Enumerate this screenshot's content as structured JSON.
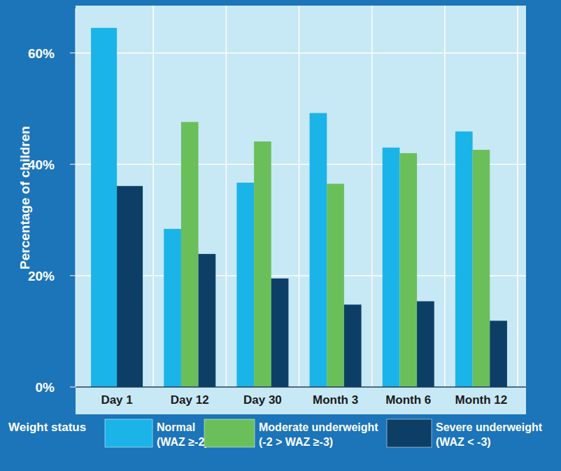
{
  "chart_data": {
    "type": "bar",
    "y_label": "Percentage of children",
    "categories": [
      "Day 1",
      "Day 12",
      "Day 30",
      "Month 3",
      "Month 6",
      "Month 12"
    ],
    "series": [
      {
        "name": "Normal (WAZ ≥-2)",
        "color": "#1ab4e8",
        "values": [
          64.5,
          28.4,
          36.7,
          49.2,
          43.0,
          45.9
        ]
      },
      {
        "name": "Moderate underweight (-2 > WAZ ≥-3)",
        "color": "#6abf5a",
        "values": [
          null,
          47.6,
          44.1,
          36.5,
          42.0,
          42.6
        ]
      },
      {
        "name": "Severe underweight (WAZ < -3)",
        "color": "#0d3f66",
        "values": [
          36.1,
          23.9,
          19.5,
          14.8,
          15.4,
          11.9
        ]
      }
    ],
    "legend_title": "Weight status",
    "legend": "bottom",
    "ylim": [
      0,
      68
    ],
    "yticks": [
      {
        "value": 0,
        "label": "0%"
      },
      {
        "value": 20,
        "label": "20%"
      },
      {
        "value": 40,
        "label": "40%"
      },
      {
        "value": 60,
        "label": "60%"
      }
    ],
    "grid": true
  }
}
